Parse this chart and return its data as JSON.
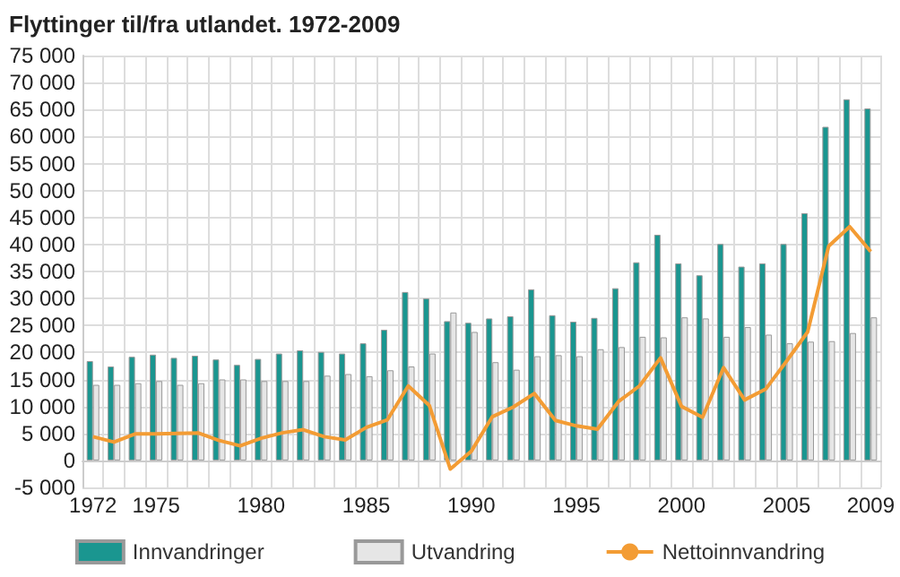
{
  "chart_data": {
    "type": "bar",
    "title": "Flyttinger til/fra utlandet. 1972-2009",
    "categories": [
      "1972",
      null,
      null,
      "1975",
      null,
      null,
      null,
      null,
      "1980",
      null,
      null,
      null,
      null,
      "1985",
      null,
      null,
      null,
      null,
      "1990",
      null,
      null,
      null,
      null,
      "1995",
      null,
      null,
      null,
      null,
      "2000",
      null,
      null,
      null,
      null,
      "2005",
      null,
      null,
      null,
      "2009"
    ],
    "series": [
      {
        "name": "Innvandringer",
        "color": "#1a9690",
        "values": [
          18400,
          17400,
          19200,
          19600,
          19000,
          19400,
          18700,
          17700,
          18800,
          19800,
          20400,
          20100,
          19800,
          21700,
          24200,
          31200,
          30000,
          25800,
          25500,
          26300,
          26700,
          31700,
          26900,
          25700,
          26400,
          31900,
          36700,
          41800,
          36500,
          34300,
          40100,
          35900,
          36500,
          40100,
          45800,
          61800,
          66900,
          65200
        ]
      },
      {
        "name": "Utvandring",
        "color": "#e6e6e6",
        "values": [
          14000,
          14000,
          14300,
          14700,
          14000,
          14300,
          15000,
          15000,
          14700,
          14700,
          14700,
          15700,
          16000,
          15600,
          16700,
          17400,
          19800,
          27400,
          23800,
          18200,
          16800,
          19300,
          19500,
          19300,
          20600,
          21000,
          22900,
          22800,
          26500,
          26300,
          22900,
          24700,
          23300,
          21700,
          22000,
          22100,
          23600,
          26500
        ]
      },
      {
        "name": "Nettoinnvandring",
        "type": "line",
        "color": "#f39c34",
        "values": [
          4400,
          3400,
          4900,
          4900,
          5000,
          5100,
          3700,
          2700,
          4100,
          5100,
          5700,
          4400,
          3800,
          6100,
          7500,
          13800,
          10200,
          -1600,
          1700,
          8100,
          9900,
          12400,
          7400,
          6400,
          5800,
          10900,
          13800,
          19000,
          10000,
          8000,
          17200,
          11200,
          13200,
          18400,
          23800,
          39700,
          43300,
          38700
        ]
      }
    ],
    "ylim": [
      -5000,
      75000
    ],
    "yticks": [
      -5000,
      0,
      5000,
      10000,
      15000,
      20000,
      25000,
      30000,
      35000,
      40000,
      45000,
      50000,
      55000,
      60000,
      65000,
      70000,
      75000
    ],
    "grid": true,
    "legend": "bottom",
    "marker": "none",
    "line_style": "solid"
  }
}
